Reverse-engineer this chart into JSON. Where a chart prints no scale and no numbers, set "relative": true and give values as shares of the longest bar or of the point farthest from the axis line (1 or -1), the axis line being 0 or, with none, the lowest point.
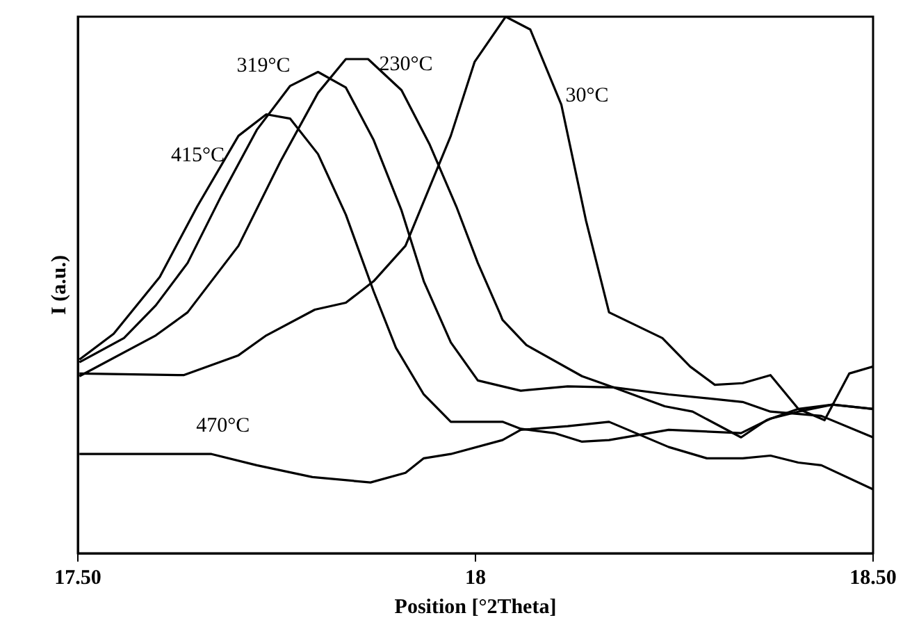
{
  "chart_data": {
    "type": "line",
    "relative": true,
    "xlabel": "Position [°2Theta]",
    "ylabel": "I (a.u.)",
    "xlim": [
      17.5,
      18.5
    ],
    "xticks": [
      {
        "value": 17.5,
        "label": "17.50"
      },
      18,
      {
        "value": 18.5,
        "label": "18.50"
      }
    ],
    "marker": "none",
    "line_style": "solid",
    "legend": false,
    "series": [
      {
        "name": "30°C",
        "color": "#000000",
        "x": [
          17.502,
          17.633,
          17.702,
          17.737,
          17.798,
          17.837,
          17.872,
          17.912,
          17.969,
          17.999,
          18.038,
          18.069,
          18.108,
          18.139,
          18.168,
          18.235,
          18.27,
          18.301,
          18.336,
          18.371,
          18.406,
          18.439,
          18.47,
          18.5
        ],
        "values": [
          0.335,
          0.332,
          0.369,
          0.406,
          0.454,
          0.467,
          0.507,
          0.573,
          0.778,
          0.916,
          1,
          0.976,
          0.836,
          0.62,
          0.449,
          0.401,
          0.348,
          0.314,
          0.317,
          0.332,
          0.269,
          0.248,
          0.335,
          0.348
        ]
      },
      {
        "name": "230°C",
        "color": "#000000",
        "x": [
          17.502,
          17.598,
          17.638,
          17.702,
          17.755,
          17.802,
          17.837,
          17.865,
          17.907,
          17.942,
          17.976,
          18.003,
          18.031,
          18.034,
          18.064,
          18.134,
          18.174,
          18.238,
          18.273,
          18.334,
          18.366,
          18.406,
          18.449,
          18.5
        ],
        "values": [
          0.33,
          0.406,
          0.449,
          0.573,
          0.731,
          0.858,
          0.921,
          0.921,
          0.863,
          0.763,
          0.646,
          0.541,
          0.446,
          0.435,
          0.388,
          0.33,
          0.309,
          0.274,
          0.264,
          0.216,
          0.248,
          0.269,
          0.277,
          0.269
        ]
      },
      {
        "name": "319°C",
        "color": "#000000",
        "x": [
          17.502,
          17.558,
          17.598,
          17.638,
          17.68,
          17.725,
          17.767,
          17.802,
          17.837,
          17.872,
          17.907,
          17.935,
          17.969,
          18.003,
          18.034,
          18.057,
          18.116,
          18.174,
          18.243,
          18.336,
          18.371,
          18.435,
          18.5
        ],
        "values": [
          0.356,
          0.401,
          0.462,
          0.541,
          0.665,
          0.789,
          0.871,
          0.897,
          0.868,
          0.77,
          0.639,
          0.507,
          0.393,
          0.322,
          0.311,
          0.303,
          0.311,
          0.309,
          0.296,
          0.282,
          0.264,
          0.256,
          0.216
        ]
      },
      {
        "name": "415°C",
        "color": "#000000",
        "x": [
          17.502,
          17.545,
          17.603,
          17.65,
          17.702,
          17.737,
          17.767,
          17.802,
          17.837,
          17.872,
          17.9,
          17.935,
          17.969,
          18.034,
          18.057,
          18.099,
          18.134,
          18.168,
          18.243,
          18.334,
          18.371,
          18.406,
          18.449,
          18.5
        ],
        "values": [
          0.361,
          0.409,
          0.515,
          0.646,
          0.778,
          0.818,
          0.81,
          0.744,
          0.631,
          0.488,
          0.383,
          0.296,
          0.245,
          0.245,
          0.232,
          0.224,
          0.208,
          0.211,
          0.23,
          0.224,
          0.251,
          0.264,
          0.277,
          0.269
        ]
      },
      {
        "name": "470°C",
        "color": "#000000",
        "x": [
          17.502,
          17.668,
          17.725,
          17.795,
          17.868,
          17.912,
          17.935,
          17.969,
          18.034,
          18.057,
          18.116,
          18.168,
          18.243,
          18.291,
          18.336,
          18.371,
          18.406,
          18.435,
          18.5
        ],
        "values": [
          0.185,
          0.185,
          0.164,
          0.142,
          0.132,
          0.15,
          0.177,
          0.185,
          0.211,
          0.23,
          0.237,
          0.245,
          0.198,
          0.177,
          0.177,
          0.182,
          0.169,
          0.164,
          0.119
        ]
      }
    ]
  }
}
